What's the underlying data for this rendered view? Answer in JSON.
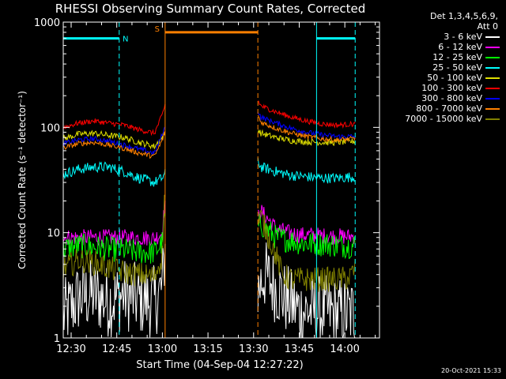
{
  "chart_data": {
    "type": "line",
    "title": "RHESSI Observing Summary Count Rates, Corrected",
    "xlabel": "Start Time (04-Sep-04 12:27:22)",
    "ylabel": "Corrected Count Rate (s⁻¹ detector⁻¹)",
    "x_unit": "minutes since 12:27:22",
    "xlim": [
      0,
      104
    ],
    "ylim": [
      1,
      1000
    ],
    "y_scale": "log",
    "x_ticks": [
      {
        "x": 2.6,
        "label": "12:30"
      },
      {
        "x": 17.6,
        "label": "12:45"
      },
      {
        "x": 32.6,
        "label": "13:00"
      },
      {
        "x": 47.6,
        "label": "13:15"
      },
      {
        "x": 62.6,
        "label": "13:30"
      },
      {
        "x": 77.6,
        "label": "13:45"
      },
      {
        "x": 92.6,
        "label": "14:00"
      }
    ],
    "y_ticks": [
      {
        "y": 1,
        "label": "1"
      },
      {
        "y": 10,
        "label": "10"
      },
      {
        "y": 100,
        "label": "100"
      },
      {
        "y": 1000,
        "label": "1000"
      }
    ],
    "legend_header": [
      "Det 1,3,4,5,6,9,",
      "Att 0"
    ],
    "legend_position": "right",
    "series": [
      {
        "name": "3 - 6 keV",
        "color": "#ffffff",
        "x": [
          0,
          5,
          10,
          15,
          20,
          25,
          30,
          32.5,
          33.5,
          64,
          66,
          70,
          74,
          78,
          82,
          86,
          90,
          94,
          96
        ],
        "y": [
          1.6,
          2.4,
          2.6,
          2.2,
          2.6,
          2.3,
          2.2,
          3.0,
          7,
          2.8,
          4.0,
          3.0,
          2.2,
          1.8,
          1.8,
          1.8,
          1.7,
          1.7,
          1.8
        ],
        "noise": 0.35
      },
      {
        "name": "6 - 12 keV",
        "color": "#ff00ff",
        "x": [
          0,
          5,
          10,
          15,
          20,
          25,
          30,
          32.5,
          33.5,
          64,
          65,
          70,
          74,
          78,
          82,
          86,
          90,
          94,
          96
        ],
        "y": [
          9,
          9,
          9,
          9,
          9,
          9,
          8.8,
          10,
          20,
          14,
          16,
          11,
          10,
          9.5,
          9.5,
          9.3,
          9.2,
          9.2,
          9.3
        ],
        "noise": 0.08
      },
      {
        "name": "12 - 25 keV",
        "color": "#00ff00",
        "x": [
          0,
          5,
          10,
          15,
          20,
          25,
          30,
          32.5,
          33.5,
          64,
          65,
          70,
          74,
          78,
          82,
          86,
          90,
          94,
          96
        ],
        "y": [
          7,
          7.5,
          7.3,
          7,
          6.8,
          6.5,
          6.5,
          8,
          15,
          11,
          12,
          9,
          8.5,
          8,
          7.8,
          7.8,
          7.6,
          7.5,
          7.6
        ],
        "noise": 0.12
      },
      {
        "name": "25 - 50 keV",
        "color": "#00ffff",
        "x": [
          0,
          5,
          10,
          15,
          20,
          25,
          30,
          32.5,
          33.5,
          64,
          65,
          70,
          75,
          80,
          85,
          90,
          96
        ],
        "y": [
          36,
          40,
          42,
          42,
          38,
          33,
          30,
          33,
          36,
          48,
          42,
          38,
          35,
          34,
          33,
          33,
          34
        ],
        "noise": 0.05
      },
      {
        "name": "50 - 100 keV",
        "color": "#e0e000",
        "x": [
          0,
          5,
          10,
          15,
          20,
          25,
          30,
          32.5,
          33.5,
          64,
          65,
          70,
          75,
          80,
          85,
          90,
          96
        ],
        "y": [
          78,
          86,
          88,
          84,
          80,
          72,
          66,
          80,
          90,
          95,
          88,
          80,
          75,
          73,
          72,
          72,
          74
        ],
        "noise": 0.03
      },
      {
        "name": "100 - 300 keV",
        "color": "#ff0000",
        "x": [
          0,
          5,
          10,
          15,
          20,
          25,
          30,
          32.5,
          33.5,
          64,
          65,
          70,
          75,
          80,
          85,
          90,
          96
        ],
        "y": [
          100,
          110,
          115,
          110,
          105,
          95,
          88,
          130,
          165,
          180,
          160,
          140,
          125,
          115,
          108,
          105,
          108
        ],
        "noise": 0.025
      },
      {
        "name": "300 - 800 keV",
        "color": "#0000ff",
        "x": [
          0,
          5,
          10,
          15,
          20,
          25,
          30,
          32.5,
          33.5,
          64,
          65,
          70,
          75,
          80,
          85,
          90,
          96
        ],
        "y": [
          70,
          76,
          78,
          74,
          68,
          62,
          57,
          85,
          100,
          145,
          125,
          110,
          98,
          90,
          85,
          82,
          82
        ],
        "noise": 0.025
      },
      {
        "name": "800 - 7000 keV",
        "color": "#ff8000",
        "x": [
          0,
          5,
          10,
          15,
          20,
          25,
          30,
          32.5,
          33.5,
          64,
          65,
          70,
          75,
          80,
          85,
          90,
          96
        ],
        "y": [
          64,
          70,
          72,
          68,
          63,
          57,
          53,
          75,
          90,
          130,
          112,
          98,
          88,
          82,
          78,
          76,
          78
        ],
        "noise": 0.025
      },
      {
        "name": "7000 - 15000 keV",
        "color": "#808000",
        "x": [
          0,
          5,
          10,
          15,
          20,
          25,
          30,
          32.5,
          33.5,
          64,
          65,
          67,
          70,
          72,
          75,
          80,
          85,
          90,
          94,
          96
        ],
        "y": [
          4.5,
          5.5,
          5.2,
          4.6,
          4.2,
          4.0,
          3.8,
          6,
          28,
          12,
          14,
          10,
          6,
          4.0,
          3.6,
          3.6,
          3.6,
          3.6,
          3.7,
          4.5
        ],
        "noise": 0.12
      }
    ],
    "gaps": [
      [
        33.5,
        64
      ]
    ],
    "markers": [
      {
        "type": "bar",
        "label": "N",
        "color": "#00ffff",
        "x": [
          0,
          18.4
        ],
        "y": 700
      },
      {
        "type": "bar",
        "label": "",
        "color": "#00ffff",
        "x": [
          83.3,
          96
        ],
        "y": 700
      },
      {
        "type": "bar",
        "label": "S",
        "color": "#ff8000",
        "x": [
          33.5,
          64
        ],
        "y": 800
      },
      {
        "type": "vline",
        "color": "#00ffff",
        "style": "solid",
        "x": 0
      },
      {
        "type": "vline",
        "color": "#00ffff",
        "style": "dashed",
        "x": 18.4
      },
      {
        "type": "vline",
        "color": "#ff8000",
        "style": "solid",
        "x": 33.5
      },
      {
        "type": "vline",
        "color": "#ff8000",
        "style": "dashed",
        "x": 64
      },
      {
        "type": "vline",
        "color": "#00ffff",
        "style": "solid",
        "x": 83.3
      },
      {
        "type": "vline",
        "color": "#00ffff",
        "style": "dashed",
        "x": 96
      }
    ]
  },
  "timestamp": "20-Oct-2021 15:33"
}
